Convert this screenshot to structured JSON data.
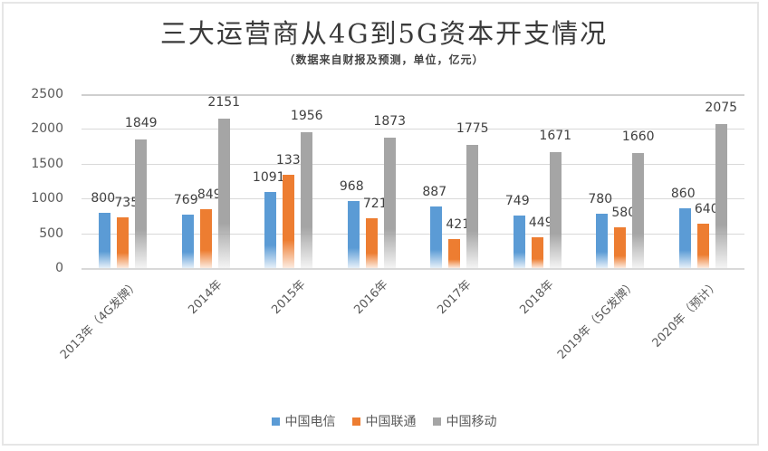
{
  "title": "三大运营商从4G到5G资本开支情况",
  "subtitle": "（数据来自财报及预测，单位，亿元）",
  "legend": [
    {
      "label": "中国电信",
      "color": "#5b9bd5"
    },
    {
      "label": "中国联通",
      "color": "#ed7d31"
    },
    {
      "label": "中国移动",
      "color": "#a5a5a5"
    }
  ],
  "y_ticks": [
    "0",
    "500",
    "1000",
    "1500",
    "2000",
    "2500"
  ],
  "chart_data": {
    "type": "bar",
    "title": "三大运营商从4G到5G资本开支情况",
    "subtitle": "（数据来自财报及预测，单位，亿元）",
    "xlabel": "",
    "ylabel": "",
    "ylim": [
      0,
      2500
    ],
    "yticks": [
      0,
      500,
      1000,
      1500,
      2000,
      2500
    ],
    "grid": true,
    "legend_position": "bottom",
    "categories": [
      "2013年（4G发牌）",
      "2014年",
      "2015年",
      "2016年",
      "2017年",
      "2018年",
      "2019年（5G发牌）",
      "2020年（预计）"
    ],
    "series": [
      {
        "name": "中国电信",
        "color": "#5b9bd5",
        "values": [
          800,
          769,
          1091,
          968,
          887,
          749,
          780,
          860
        ]
      },
      {
        "name": "中国联通",
        "color": "#ed7d31",
        "values": [
          735,
          849,
          1339,
          721,
          421,
          449,
          580,
          640
        ]
      },
      {
        "name": "中国移动",
        "color": "#a5a5a5",
        "values": [
          1849,
          2151,
          1956,
          1873,
          1775,
          1671,
          1660,
          2075
        ]
      }
    ]
  }
}
